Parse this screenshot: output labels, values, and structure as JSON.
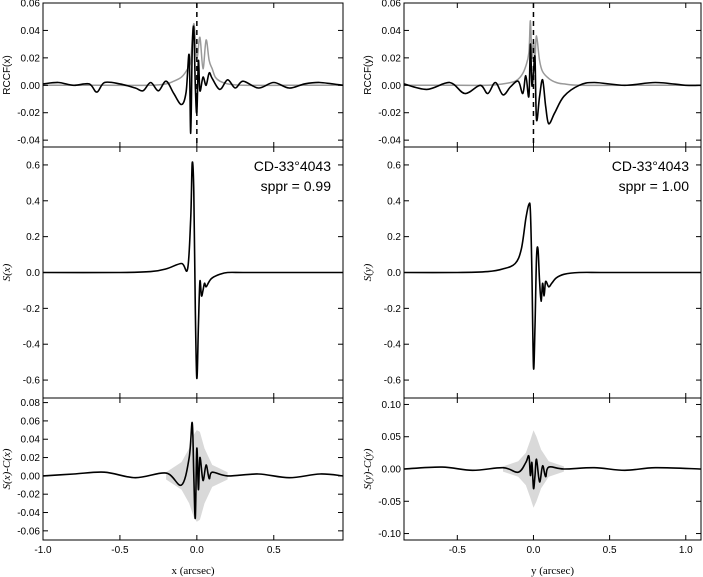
{
  "chart_data": [
    {
      "type": "line",
      "column": "left",
      "ylabel": "RCCF(x)",
      "xlim": [
        -1.0,
        0.95
      ],
      "ylim": [
        -0.045,
        0.06
      ],
      "yticks": [
        -0.04,
        -0.02,
        0.0,
        0.02,
        0.04,
        0.06
      ],
      "ytick_labels": [
        "-0.04",
        "-0.02",
        "0.00",
        "0.02",
        "0.04",
        "0.06"
      ],
      "vline_x": 0.0,
      "series": [
        {
          "color": "#999999",
          "x": [
            -1.0,
            -0.6,
            -0.3,
            -0.2,
            -0.15,
            -0.1,
            -0.06,
            -0.04,
            -0.02,
            0.0,
            0.02,
            0.04,
            0.06,
            0.08,
            0.1,
            0.12,
            0.15,
            0.2,
            0.3,
            0.6,
            0.95
          ],
          "y": [
            0.0,
            0.0,
            0.0,
            0.001,
            0.003,
            0.006,
            0.012,
            0.018,
            0.045,
            0.02,
            0.035,
            0.012,
            0.033,
            0.018,
            0.012,
            0.006,
            0.003,
            0.001,
            0.0,
            0.0,
            0.0
          ]
        },
        {
          "color": "#000000",
          "x": [
            -1.0,
            -0.9,
            -0.8,
            -0.7,
            -0.65,
            -0.6,
            -0.5,
            -0.4,
            -0.35,
            -0.3,
            -0.25,
            -0.2,
            -0.15,
            -0.1,
            -0.07,
            -0.05,
            -0.04,
            -0.03,
            -0.02,
            -0.01,
            0.0,
            0.01,
            0.02,
            0.04,
            0.06,
            0.08,
            0.1,
            0.15,
            0.2,
            0.25,
            0.3,
            0.4,
            0.5,
            0.6,
            0.7,
            0.8,
            0.95
          ],
          "y": [
            0.001,
            0.002,
            0.0,
            0.001,
            -0.005,
            0.002,
            0.001,
            -0.002,
            -0.004,
            0.002,
            -0.004,
            0.003,
            -0.006,
            -0.014,
            -0.005,
            0.022,
            -0.035,
            0.025,
            0.042,
            0.0,
            -0.02,
            0.018,
            -0.004,
            0.006,
            0.0,
            0.009,
            0.005,
            -0.003,
            0.004,
            -0.002,
            0.003,
            -0.002,
            0.002,
            -0.002,
            0.001,
            0.002,
            0.0
          ]
        }
      ]
    },
    {
      "type": "line",
      "column": "left",
      "ylabel": "S(x)",
      "annotation": [
        "CD-33°4043",
        "sppr = 0.99"
      ],
      "xlim": [
        -1.0,
        0.95
      ],
      "ylim": [
        -0.7,
        0.7
      ],
      "yticks": [
        -0.6,
        -0.4,
        -0.2,
        0.0,
        0.2,
        0.4,
        0.6
      ],
      "ytick_labels": [
        "-0.6",
        "-0.4",
        "-0.2",
        "0.0",
        "0.2",
        "0.4",
        "0.6"
      ],
      "series": [
        {
          "color": "#000000",
          "x": [
            -1.0,
            -0.5,
            -0.3,
            -0.2,
            -0.1,
            -0.06,
            -0.04,
            -0.03,
            -0.02,
            -0.01,
            0.0,
            0.01,
            0.02,
            0.03,
            0.04,
            0.05,
            0.06,
            0.08,
            0.1,
            0.15,
            0.2,
            0.3,
            0.5,
            0.95
          ],
          "y": [
            0.0,
            0.0,
            0.005,
            0.02,
            0.05,
            0.02,
            0.3,
            0.61,
            0.45,
            -0.2,
            -0.59,
            -0.3,
            -0.05,
            -0.13,
            -0.1,
            -0.06,
            -0.08,
            -0.05,
            -0.03,
            -0.01,
            0.0,
            0.0,
            0.0,
            0.0
          ]
        }
      ]
    },
    {
      "type": "line",
      "column": "left",
      "ylabel": "S(x)-C(x)",
      "xlabel": "x (arcsec)",
      "xlim": [
        -1.0,
        0.95
      ],
      "ylim": [
        -0.07,
        0.085
      ],
      "yticks": [
        -0.06,
        -0.04,
        -0.02,
        0.0,
        0.02,
        0.04,
        0.06,
        0.08
      ],
      "ytick_labels": [
        "-0.06",
        "-0.04",
        "-0.02",
        "0.00",
        "0.02",
        "0.04",
        "0.06",
        "0.08"
      ],
      "xticks": [
        -1.0,
        -0.5,
        0.0,
        0.5
      ],
      "xtick_labels": [
        "-1.0",
        "-0.5",
        "0.0",
        "0.5"
      ],
      "band": {
        "color": "#d9d9d9",
        "x": [
          -0.2,
          -0.1,
          -0.05,
          -0.02,
          0.0,
          0.02,
          0.05,
          0.1,
          0.2
        ],
        "upper": [
          0.004,
          0.015,
          0.03,
          0.045,
          0.05,
          0.048,
          0.03,
          0.012,
          0.004
        ],
        "lower": [
          -0.004,
          -0.015,
          -0.03,
          -0.045,
          -0.05,
          -0.048,
          -0.03,
          -0.012,
          -0.004
        ]
      },
      "series": [
        {
          "color": "#000000",
          "x": [
            -1.0,
            -0.8,
            -0.6,
            -0.4,
            -0.2,
            -0.1,
            -0.05,
            -0.03,
            -0.02,
            -0.01,
            0.0,
            0.01,
            0.02,
            0.04,
            0.06,
            0.08,
            0.1,
            0.2,
            0.4,
            0.6,
            0.8,
            0.95
          ],
          "y": [
            0.0,
            0.002,
            0.004,
            -0.002,
            0.003,
            -0.01,
            0.02,
            0.058,
            0.0,
            -0.046,
            0.03,
            -0.015,
            0.02,
            -0.005,
            0.012,
            -0.003,
            0.004,
            0.0,
            0.002,
            -0.002,
            0.002,
            0.0
          ]
        }
      ]
    },
    {
      "type": "line",
      "column": "right",
      "ylabel": "RCCF(y)",
      "xlim": [
        -0.85,
        1.1
      ],
      "ylim": [
        -0.045,
        0.06
      ],
      "yticks": [
        -0.04,
        -0.02,
        0.0,
        0.02,
        0.04,
        0.06
      ],
      "ytick_labels": [
        "-0.04",
        "-0.02",
        "0.00",
        "0.02",
        "0.04",
        "0.06"
      ],
      "vline_x": 0.0,
      "series": [
        {
          "color": "#999999",
          "x": [
            -0.85,
            -0.5,
            -0.3,
            -0.2,
            -0.12,
            -0.08,
            -0.05,
            -0.03,
            -0.02,
            -0.01,
            0.0,
            0.01,
            0.02,
            0.04,
            0.06,
            0.1,
            0.15,
            0.2,
            0.3,
            0.6,
            1.1
          ],
          "y": [
            0.0,
            0.0,
            0.0,
            0.001,
            0.003,
            0.007,
            0.014,
            0.024,
            0.047,
            0.02,
            0.032,
            0.02,
            0.036,
            0.018,
            0.01,
            0.005,
            0.002,
            0.001,
            0.0,
            0.0,
            0.0
          ]
        },
        {
          "color": "#000000",
          "x": [
            -0.85,
            -0.7,
            -0.55,
            -0.45,
            -0.35,
            -0.3,
            -0.25,
            -0.2,
            -0.15,
            -0.1,
            -0.07,
            -0.05,
            -0.03,
            -0.02,
            -0.01,
            0.0,
            0.01,
            0.02,
            0.04,
            0.06,
            0.08,
            0.1,
            0.14,
            0.2,
            0.3,
            0.4,
            0.6,
            0.8,
            1.0,
            1.1
          ],
          "y": [
            0.001,
            -0.003,
            0.002,
            -0.006,
            0.0,
            -0.006,
            0.002,
            -0.007,
            -0.001,
            0.003,
            -0.006,
            0.007,
            -0.008,
            0.03,
            0.0,
            0.01,
            0.02,
            -0.025,
            -0.008,
            0.004,
            -0.015,
            -0.028,
            -0.02,
            -0.008,
            0.0,
            0.002,
            0.0,
            0.002,
            0.0,
            0.0
          ]
        }
      ]
    },
    {
      "type": "line",
      "column": "right",
      "ylabel": "S(y)",
      "annotation": [
        "CD-33°4043",
        "sppr = 1.00"
      ],
      "xlim": [
        -0.85,
        1.1
      ],
      "ylim": [
        -0.7,
        0.7
      ],
      "yticks": [
        -0.6,
        -0.4,
        -0.2,
        0.0,
        0.2,
        0.4,
        0.6
      ],
      "ytick_labels": [
        "-0.6",
        "-0.4",
        "-0.2",
        "0.0",
        "0.2",
        "0.4",
        "0.6"
      ],
      "series": [
        {
          "color": "#000000",
          "x": [
            -0.85,
            -0.5,
            -0.3,
            -0.2,
            -0.12,
            -0.08,
            -0.05,
            -0.03,
            -0.02,
            -0.01,
            0.0,
            0.01,
            0.02,
            0.03,
            0.04,
            0.05,
            0.06,
            0.07,
            0.08,
            0.1,
            0.12,
            0.15,
            0.2,
            0.3,
            0.5,
            1.1
          ],
          "y": [
            0.0,
            0.0,
            0.005,
            0.02,
            0.05,
            0.13,
            0.3,
            0.38,
            0.34,
            0.0,
            -0.53,
            -0.3,
            0.08,
            0.13,
            -0.05,
            -0.16,
            -0.06,
            -0.13,
            -0.05,
            -0.08,
            -0.06,
            -0.03,
            -0.01,
            0.0,
            0.0,
            0.0
          ]
        }
      ]
    },
    {
      "type": "line",
      "column": "right",
      "ylabel": "S(y)-C(y)",
      "xlabel": "y (arcsec)",
      "xlim": [
        -0.85,
        1.1
      ],
      "ylim": [
        -0.11,
        0.11
      ],
      "yticks": [
        -0.1,
        -0.05,
        0.0,
        0.05,
        0.1
      ],
      "ytick_labels": [
        "-0.10",
        "-0.05",
        "0.00",
        "0.05",
        "0.10"
      ],
      "xticks": [
        -0.5,
        0.0,
        0.5,
        1.0
      ],
      "xtick_labels": [
        "-0.5",
        "0.0",
        "0.5",
        "1.0"
      ],
      "band": {
        "color": "#d9d9d9",
        "x": [
          -0.2,
          -0.1,
          -0.05,
          -0.02,
          0.0,
          0.02,
          0.05,
          0.1,
          0.2
        ],
        "upper": [
          0.004,
          0.012,
          0.025,
          0.045,
          0.06,
          0.05,
          0.03,
          0.012,
          0.004
        ],
        "lower": [
          -0.004,
          -0.012,
          -0.025,
          -0.045,
          -0.06,
          -0.05,
          -0.03,
          -0.012,
          -0.004
        ]
      },
      "series": [
        {
          "color": "#000000",
          "x": [
            -0.85,
            -0.6,
            -0.4,
            -0.2,
            -0.1,
            -0.05,
            -0.03,
            -0.02,
            -0.01,
            0.0,
            0.01,
            0.02,
            0.04,
            0.06,
            0.08,
            0.1,
            0.2,
            0.4,
            0.6,
            0.8,
            1.1
          ],
          "y": [
            0.0,
            0.003,
            -0.002,
            0.002,
            -0.005,
            0.01,
            0.02,
            -0.01,
            0.01,
            -0.03,
            -0.01,
            0.015,
            -0.02,
            0.005,
            -0.012,
            0.003,
            0.0,
            0.002,
            -0.002,
            0.002,
            0.0
          ]
        }
      ]
    }
  ]
}
